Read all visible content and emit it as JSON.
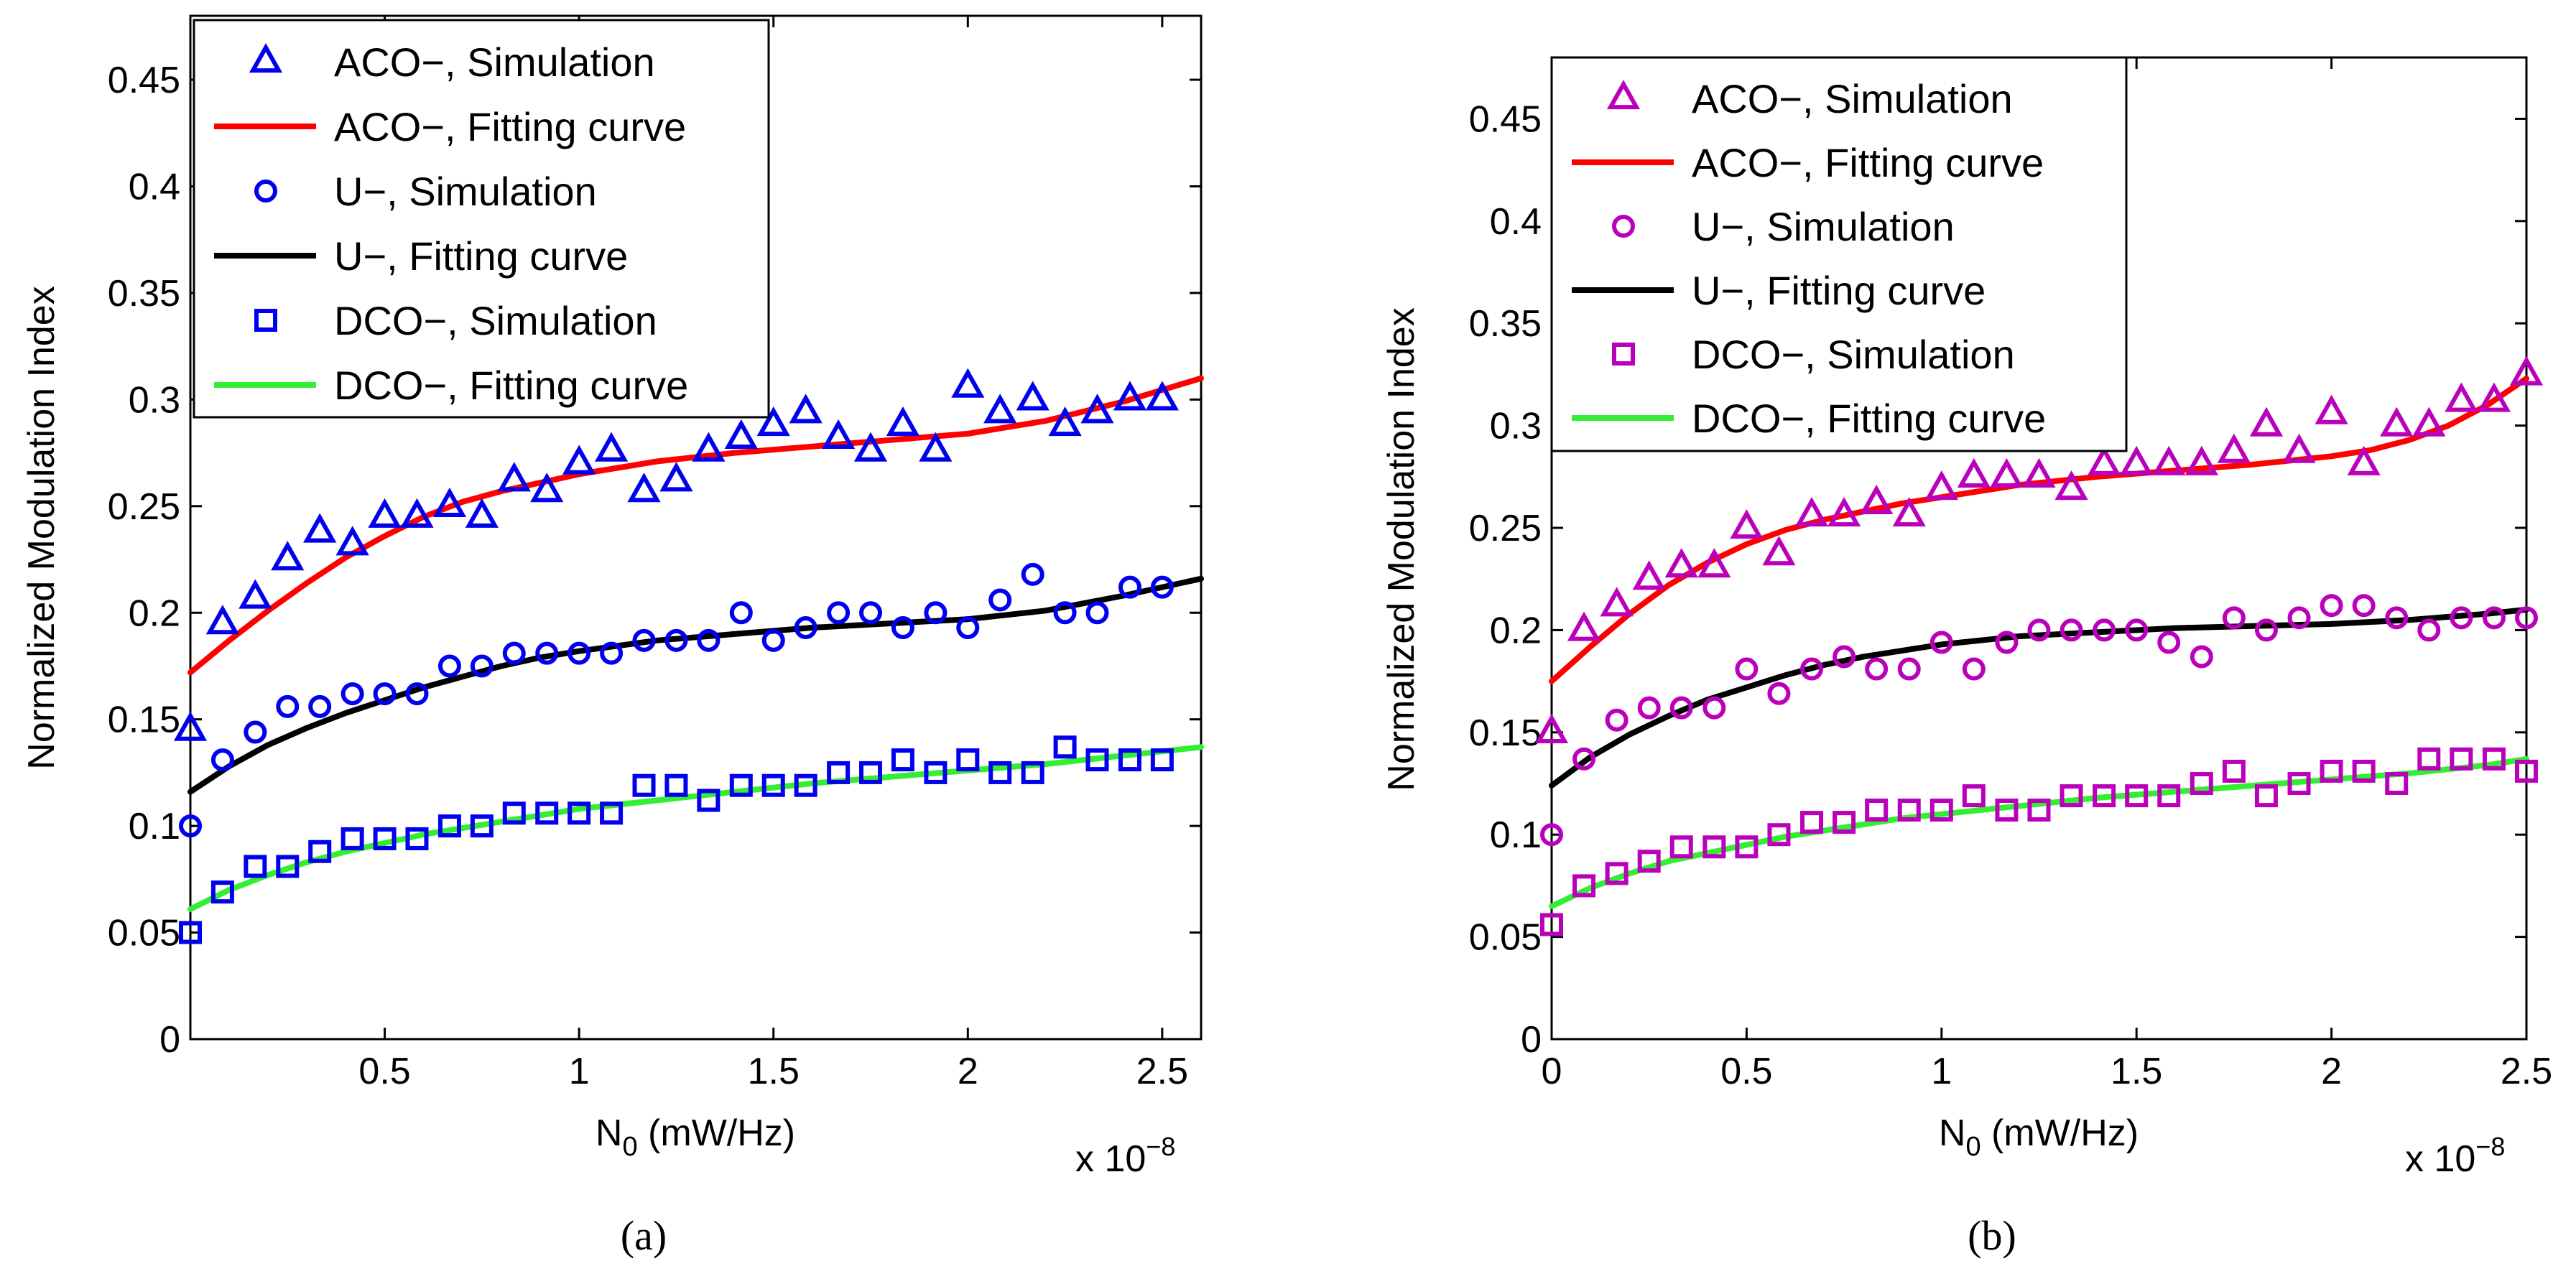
{
  "chart_data": [
    {
      "type": "scatter",
      "panel": "a",
      "caption": "(a)",
      "xlabel_main": "N",
      "xlabel_sub": "0",
      "xlabel_rest": " (mW/Hz)",
      "ylabel": "Normalized Modulation Index",
      "x_multiplier": "x 10",
      "x_multiplier_exp": "−8",
      "xlim": [
        0,
        2.6
      ],
      "ylim": [
        0,
        0.48
      ],
      "xticks": [
        0.5,
        1,
        1.5,
        2,
        2.5
      ],
      "xtick_labels": [
        "0.5",
        "1",
        "1.5",
        "2",
        "2.5"
      ],
      "yticks": [
        0,
        0.05,
        0.1,
        0.15,
        0.2,
        0.25,
        0.3,
        0.35,
        0.4,
        0.45
      ],
      "ytick_labels": [
        "0",
        "0.05",
        "0.1",
        "0.15",
        "0.2",
        "0.25",
        "0.3",
        "0.35",
        "0.4",
        "0.45"
      ],
      "legend_position": "top-left",
      "colors": {
        "marker": "#0000ee",
        "aco_fit": "#ff0000",
        "u_fit": "#000000",
        "dco_fit": "#33ee33"
      },
      "legend": [
        {
          "label": "ACO−, Simulation",
          "kind": "triangle"
        },
        {
          "label": "ACO−, Fitting curve",
          "kind": "line-red"
        },
        {
          "label": "U−, Simulation",
          "kind": "circle"
        },
        {
          "label": "U−, Fitting curve",
          "kind": "line-black"
        },
        {
          "label": "DCO−, Simulation",
          "kind": "square"
        },
        {
          "label": "DCO−, Fitting curve",
          "kind": "line-green"
        }
      ],
      "x": [
        0.0,
        0.083,
        0.167,
        0.25,
        0.333,
        0.417,
        0.5,
        0.583,
        0.667,
        0.75,
        0.833,
        0.917,
        1.0,
        1.083,
        1.167,
        1.25,
        1.333,
        1.417,
        1.5,
        1.583,
        1.667,
        1.75,
        1.833,
        1.917,
        2.0,
        2.083,
        2.167,
        2.25,
        2.333,
        2.417,
        2.5
      ],
      "series": [
        {
          "name": "ACO−, Simulation",
          "marker": "triangle",
          "values": [
            0.145,
            0.195,
            0.207,
            0.225,
            0.238,
            0.232,
            0.245,
            0.245,
            0.25,
            0.245,
            0.262,
            0.257,
            0.27,
            0.276,
            0.257,
            0.262,
            0.276,
            0.282,
            0.288,
            0.294,
            0.282,
            0.276,
            0.288,
            0.276,
            0.306,
            0.294,
            0.3,
            0.288,
            0.294,
            0.3,
            0.3
          ]
        },
        {
          "name": "U−, Simulation",
          "marker": "circle",
          "values": [
            0.1,
            0.131,
            0.144,
            0.156,
            0.156,
            0.162,
            0.162,
            0.162,
            0.175,
            0.175,
            0.181,
            0.181,
            0.181,
            0.181,
            0.187,
            0.187,
            0.187,
            0.2,
            0.187,
            0.193,
            0.2,
            0.2,
            0.193,
            0.2,
            0.193,
            0.206,
            0.218,
            0.2,
            0.2,
            0.212,
            0.212
          ]
        },
        {
          "name": "DCO−, Simulation",
          "marker": "square",
          "values": [
            0.05,
            0.069,
            0.081,
            0.081,
            0.088,
            0.094,
            0.094,
            0.094,
            0.1,
            0.1,
            0.106,
            0.106,
            0.106,
            0.106,
            0.119,
            0.119,
            0.112,
            0.119,
            0.119,
            0.119,
            0.125,
            0.125,
            0.131,
            0.125,
            0.131,
            0.125,
            0.125,
            0.137,
            0.131,
            0.131,
            0.131
          ]
        }
      ],
      "fits": [
        {
          "name": "ACO−, Fitting curve",
          "x": [
            0,
            0.1,
            0.2,
            0.3,
            0.4,
            0.5,
            0.6,
            0.7,
            0.8,
            0.9,
            1.0,
            1.2,
            1.4,
            1.6,
            1.8,
            2.0,
            2.2,
            2.4,
            2.6
          ],
          "values": [
            0.172,
            0.187,
            0.201,
            0.214,
            0.226,
            0.236,
            0.245,
            0.252,
            0.257,
            0.261,
            0.265,
            0.271,
            0.275,
            0.278,
            0.281,
            0.284,
            0.29,
            0.299,
            0.31
          ]
        },
        {
          "name": "U−, Fitting curve",
          "x": [
            0,
            0.1,
            0.2,
            0.3,
            0.4,
            0.5,
            0.6,
            0.7,
            0.8,
            0.9,
            1.0,
            1.2,
            1.4,
            1.6,
            1.8,
            2.0,
            2.2,
            2.4,
            2.6
          ],
          "values": [
            0.116,
            0.128,
            0.138,
            0.146,
            0.153,
            0.159,
            0.165,
            0.17,
            0.175,
            0.179,
            0.182,
            0.187,
            0.19,
            0.193,
            0.195,
            0.197,
            0.201,
            0.208,
            0.216
          ]
        },
        {
          "name": "DCO−, Fitting curve",
          "x": [
            0,
            0.1,
            0.2,
            0.3,
            0.4,
            0.5,
            0.6,
            0.7,
            0.8,
            0.9,
            1.0,
            1.2,
            1.4,
            1.6,
            1.8,
            2.0,
            2.2,
            2.4,
            2.6
          ],
          "values": [
            0.061,
            0.07,
            0.077,
            0.083,
            0.088,
            0.092,
            0.096,
            0.099,
            0.102,
            0.105,
            0.108,
            0.112,
            0.116,
            0.12,
            0.123,
            0.126,
            0.129,
            0.133,
            0.137
          ]
        }
      ]
    },
    {
      "type": "scatter",
      "panel": "b",
      "caption": "(b)",
      "xlabel_main": "N",
      "xlabel_sub": "0",
      "xlabel_rest": " (mW/Hz)",
      "ylabel": "Normalized Modulation Index",
      "x_multiplier": "x 10",
      "x_multiplier_exp": "−8",
      "xlim": [
        0,
        2.5
      ],
      "ylim": [
        0,
        0.48
      ],
      "xticks": [
        0,
        0.5,
        1,
        1.5,
        2,
        2.5
      ],
      "xtick_labels": [
        "0",
        "0.5",
        "1",
        "1.5",
        "2",
        "2.5"
      ],
      "yticks": [
        0,
        0.05,
        0.1,
        0.15,
        0.2,
        0.25,
        0.3,
        0.35,
        0.4,
        0.45
      ],
      "ytick_labels": [
        "0",
        "0.05",
        "0.1",
        "0.15",
        "0.2",
        "0.25",
        "0.3",
        "0.35",
        "0.4",
        "0.45"
      ],
      "legend_position": "top-left",
      "colors": {
        "marker": "#bb00bb",
        "aco_fit": "#ff0000",
        "u_fit": "#000000",
        "dco_fit": "#33ee33"
      },
      "legend": [
        {
          "label": "ACO−, Simulation",
          "kind": "triangle"
        },
        {
          "label": "ACO−, Fitting curve",
          "kind": "line-red"
        },
        {
          "label": "U−, Simulation",
          "kind": "circle"
        },
        {
          "label": "U−, Fitting curve",
          "kind": "line-black"
        },
        {
          "label": "DCO−, Simulation",
          "kind": "square"
        },
        {
          "label": "DCO−, Fitting curve",
          "kind": "line-green"
        }
      ],
      "x": [
        0.0,
        0.083,
        0.167,
        0.25,
        0.333,
        0.417,
        0.5,
        0.583,
        0.667,
        0.75,
        0.833,
        0.917,
        1.0,
        1.083,
        1.167,
        1.25,
        1.333,
        1.417,
        1.5,
        1.583,
        1.667,
        1.75,
        1.833,
        1.917,
        2.0,
        2.083,
        2.167,
        2.25,
        2.333,
        2.417,
        2.5
      ],
      "series": [
        {
          "name": "ACO−, Simulation",
          "marker": "triangle",
          "values": [
            0.15,
            0.2,
            0.212,
            0.225,
            0.231,
            0.231,
            0.25,
            0.237,
            0.256,
            0.256,
            0.262,
            0.256,
            0.269,
            0.275,
            0.275,
            0.275,
            0.269,
            0.281,
            0.281,
            0.281,
            0.281,
            0.287,
            0.3,
            0.287,
            0.306,
            0.281,
            0.3,
            0.3,
            0.312,
            0.312,
            0.325
          ]
        },
        {
          "name": "U−, Simulation",
          "marker": "circle",
          "values": [
            0.1,
            0.137,
            0.156,
            0.162,
            0.162,
            0.162,
            0.181,
            0.169,
            0.181,
            0.187,
            0.181,
            0.181,
            0.194,
            0.181,
            0.194,
            0.2,
            0.2,
            0.2,
            0.2,
            0.194,
            0.187,
            0.206,
            0.2,
            0.206,
            0.212,
            0.212,
            0.206,
            0.2,
            0.206,
            0.206,
            0.206
          ]
        },
        {
          "name": "DCO−, Simulation",
          "marker": "square",
          "values": [
            0.056,
            0.075,
            0.081,
            0.087,
            0.094,
            0.094,
            0.094,
            0.1,
            0.106,
            0.106,
            0.112,
            0.112,
            0.112,
            0.119,
            0.112,
            0.112,
            0.119,
            0.119,
            0.119,
            0.119,
            0.125,
            0.131,
            0.119,
            0.125,
            0.131,
            0.131,
            0.125,
            0.137,
            0.137,
            0.137,
            0.131
          ]
        }
      ],
      "fits": [
        {
          "name": "ACO−, Fitting curve",
          "x": [
            0,
            0.1,
            0.2,
            0.3,
            0.4,
            0.5,
            0.6,
            0.7,
            0.8,
            0.9,
            1.0,
            1.2,
            1.4,
            1.6,
            1.8,
            2.0,
            2.1,
            2.2,
            2.3,
            2.4,
            2.5
          ],
          "values": [
            0.175,
            0.192,
            0.208,
            0.222,
            0.233,
            0.242,
            0.249,
            0.254,
            0.258,
            0.262,
            0.265,
            0.271,
            0.275,
            0.278,
            0.281,
            0.285,
            0.288,
            0.293,
            0.3,
            0.31,
            0.323
          ]
        },
        {
          "name": "U−, Fitting curve",
          "x": [
            0,
            0.1,
            0.2,
            0.3,
            0.4,
            0.5,
            0.6,
            0.7,
            0.8,
            0.9,
            1.0,
            1.2,
            1.4,
            1.6,
            1.8,
            2.0,
            2.2,
            2.4,
            2.5
          ],
          "values": [
            0.124,
            0.138,
            0.149,
            0.158,
            0.166,
            0.172,
            0.178,
            0.183,
            0.187,
            0.19,
            0.193,
            0.197,
            0.199,
            0.201,
            0.202,
            0.203,
            0.205,
            0.208,
            0.21
          ]
        },
        {
          "name": "DCO−, Fitting curve",
          "x": [
            0,
            0.1,
            0.2,
            0.3,
            0.4,
            0.5,
            0.6,
            0.7,
            0.8,
            0.9,
            1.0,
            1.2,
            1.4,
            1.6,
            1.8,
            2.0,
            2.2,
            2.4,
            2.5
          ],
          "values": [
            0.065,
            0.074,
            0.081,
            0.087,
            0.091,
            0.095,
            0.099,
            0.102,
            0.105,
            0.108,
            0.11,
            0.114,
            0.118,
            0.121,
            0.124,
            0.127,
            0.13,
            0.134,
            0.137
          ]
        }
      ]
    }
  ]
}
